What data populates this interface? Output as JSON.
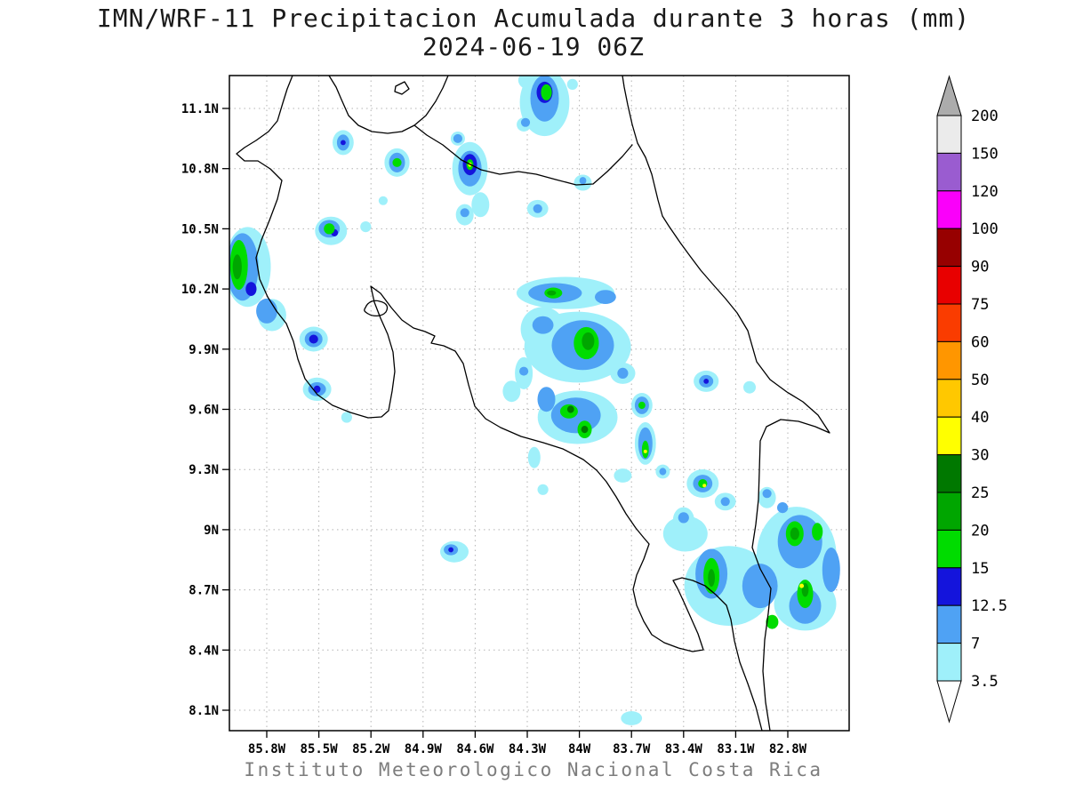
{
  "header": {
    "title": "IMN/WRF-11 Precipitacion Acumulada durante 3 horas (mm)",
    "subtitle": "2024-06-19 06Z"
  },
  "footer": {
    "caption": "Instituto Meteorologico Nacional Costa Rica"
  },
  "chart_data": {
    "type": "heatmap",
    "title": "IMN/WRF-11 Precipitacion Acumulada durante 3 horas (mm)",
    "subtitle": "2024-06-19 06Z",
    "units": "mm",
    "region": "Costa Rica",
    "grid": "dotted",
    "legend_position": "right",
    "lon_ticks": [
      "85.8W",
      "85.5W",
      "85.2W",
      "84.9W",
      "84.6W",
      "84.3W",
      "84W",
      "83.7W",
      "83.4W",
      "83.1W",
      "82.8W"
    ],
    "lat_ticks": [
      "11.1N",
      "10.8N",
      "10.5N",
      "10.2N",
      "9.9N",
      "9.6N",
      "9.3N",
      "9N",
      "8.7N",
      "8.4N",
      "8.1N"
    ],
    "lon_range_west": [
      86.02,
      82.45
    ],
    "lat_range": [
      8.0,
      11.26
    ],
    "colorbar": {
      "boundaries": [
        "200",
        "150",
        "120",
        "100",
        "90",
        "75",
        "60",
        "50",
        "40",
        "30",
        "25",
        "20",
        "15",
        "12.5",
        "7",
        "3.5"
      ],
      "segment_colors": [
        "#EBEBEB",
        "#9A5CD0",
        "#FA00FA",
        "#970000",
        "#E80000",
        "#FA3C00",
        "#FF9600",
        "#FFC800",
        "#FFFF00",
        "#007800",
        "#00A600",
        "#00DC00",
        "#1414DC",
        "#4FA2F4",
        "#9FF0FA"
      ],
      "above_color": "#ACACAC",
      "below_color": "#FFFFFF"
    },
    "precip_cells": [
      [
        84.2,
        11.13,
        0.143,
        0.168,
        3.5
      ],
      [
        84.26,
        11.24,
        0.092,
        0.053,
        3.5
      ],
      [
        84.2,
        11.15,
        0.082,
        0.115,
        7
      ],
      [
        84.2,
        11.18,
        0.046,
        0.053,
        12.5
      ],
      [
        84.19,
        11.18,
        0.031,
        0.04,
        15
      ],
      [
        84.04,
        11.22,
        0.031,
        0.027,
        3.5
      ],
      [
        84.32,
        11.02,
        0.041,
        0.035,
        3.5
      ],
      [
        84.31,
        11.03,
        0.026,
        0.022,
        7
      ],
      [
        85.05,
        10.83,
        0.072,
        0.071,
        3.5
      ],
      [
        85.05,
        10.83,
        0.046,
        0.049,
        7
      ],
      [
        85.05,
        10.83,
        0.026,
        0.022,
        15
      ],
      [
        85.36,
        10.93,
        0.061,
        0.062,
        3.5
      ],
      [
        85.36,
        10.93,
        0.036,
        0.04,
        7
      ],
      [
        85.36,
        10.93,
        0.015,
        0.013,
        12.5
      ],
      [
        84.63,
        10.8,
        0.102,
        0.133,
        3.5
      ],
      [
        84.63,
        10.8,
        0.067,
        0.089,
        7
      ],
      [
        84.63,
        10.82,
        0.041,
        0.053,
        12.5
      ],
      [
        84.63,
        10.82,
        0.02,
        0.027,
        15
      ],
      [
        84.63,
        10.82,
        0.01,
        0.011,
        30
      ],
      [
        84.57,
        10.62,
        0.051,
        0.062,
        3.5
      ],
      [
        84.7,
        10.95,
        0.041,
        0.035,
        3.5
      ],
      [
        84.7,
        10.95,
        0.026,
        0.022,
        7
      ],
      [
        84.24,
        10.6,
        0.061,
        0.044,
        3.5
      ],
      [
        84.24,
        10.6,
        0.026,
        0.022,
        7
      ],
      [
        83.98,
        10.73,
        0.051,
        0.04,
        3.5
      ],
      [
        83.98,
        10.74,
        0.02,
        0.018,
        7
      ],
      [
        84.66,
        10.57,
        0.051,
        0.053,
        3.5
      ],
      [
        84.66,
        10.58,
        0.026,
        0.022,
        7
      ],
      [
        85.91,
        10.31,
        0.133,
        0.199,
        3.5
      ],
      [
        85.94,
        10.31,
        0.092,
        0.168,
        7
      ],
      [
        85.96,
        10.32,
        0.051,
        0.124,
        15
      ],
      [
        85.97,
        10.31,
        0.026,
        0.062,
        20
      ],
      [
        85.89,
        10.2,
        0.031,
        0.035,
        12.5
      ],
      [
        85.8,
        10.09,
        0.061,
        0.062,
        7
      ],
      [
        85.77,
        10.07,
        0.082,
        0.08,
        3.5
      ],
      [
        85.43,
        10.49,
        0.092,
        0.071,
        3.5
      ],
      [
        85.44,
        10.5,
        0.061,
        0.044,
        7
      ],
      [
        85.44,
        10.5,
        0.031,
        0.027,
        15
      ],
      [
        85.41,
        10.48,
        0.02,
        0.018,
        12.5
      ],
      [
        85.23,
        10.51,
        0.031,
        0.027,
        3.5
      ],
      [
        85.13,
        10.64,
        0.026,
        0.022,
        3.5
      ],
      [
        85.53,
        9.95,
        0.082,
        0.062,
        3.5
      ],
      [
        85.53,
        9.95,
        0.051,
        0.04,
        7
      ],
      [
        85.53,
        9.95,
        0.026,
        0.022,
        12.5
      ],
      [
        85.51,
        9.7,
        0.082,
        0.058,
        3.5
      ],
      [
        85.51,
        9.7,
        0.051,
        0.035,
        7
      ],
      [
        85.51,
        9.7,
        0.02,
        0.018,
        12.5
      ],
      [
        85.34,
        9.56,
        0.031,
        0.027,
        3.5
      ],
      [
        84.08,
        10.18,
        0.282,
        0.08,
        3.5
      ],
      [
        84.14,
        10.18,
        0.154,
        0.049,
        7
      ],
      [
        84.15,
        10.18,
        0.051,
        0.027,
        15
      ],
      [
        84.16,
        10.18,
        0.026,
        0.013,
        20
      ],
      [
        83.85,
        10.16,
        0.061,
        0.035,
        7
      ],
      [
        84.01,
        9.91,
        0.307,
        0.177,
        3.5
      ],
      [
        84.21,
        10.0,
        0.128,
        0.111,
        3.5
      ],
      [
        83.98,
        9.92,
        0.179,
        0.124,
        7
      ],
      [
        83.96,
        9.93,
        0.072,
        0.08,
        15
      ],
      [
        83.95,
        9.94,
        0.036,
        0.044,
        20
      ],
      [
        84.21,
        10.02,
        0.061,
        0.044,
        7
      ],
      [
        83.75,
        9.78,
        0.072,
        0.053,
        3.5
      ],
      [
        83.75,
        9.78,
        0.031,
        0.027,
        7
      ],
      [
        84.32,
        9.78,
        0.051,
        0.08,
        3.5
      ],
      [
        84.32,
        9.79,
        0.026,
        0.022,
        7
      ],
      [
        84.39,
        9.69,
        0.051,
        0.053,
        3.5
      ],
      [
        84.01,
        9.56,
        0.23,
        0.133,
        3.5
      ],
      [
        84.02,
        9.57,
        0.143,
        0.089,
        7
      ],
      [
        84.06,
        9.59,
        0.051,
        0.035,
        15
      ],
      [
        84.05,
        9.6,
        0.02,
        0.018,
        25
      ],
      [
        83.97,
        9.5,
        0.041,
        0.044,
        15
      ],
      [
        83.97,
        9.5,
        0.02,
        0.018,
        25
      ],
      [
        84.19,
        9.65,
        0.051,
        0.062,
        7
      ],
      [
        83.64,
        9.62,
        0.061,
        0.062,
        3.5
      ],
      [
        83.64,
        9.62,
        0.041,
        0.044,
        7
      ],
      [
        83.64,
        9.62,
        0.02,
        0.018,
        15
      ],
      [
        83.27,
        9.74,
        0.072,
        0.053,
        3.5
      ],
      [
        83.27,
        9.74,
        0.041,
        0.031,
        7
      ],
      [
        83.27,
        9.74,
        0.015,
        0.013,
        12.5
      ],
      [
        83.62,
        9.43,
        0.061,
        0.106,
        3.5
      ],
      [
        83.62,
        9.43,
        0.041,
        0.08,
        7
      ],
      [
        83.62,
        9.4,
        0.02,
        0.044,
        15
      ],
      [
        83.62,
        9.39,
        0.01,
        0.009,
        30
      ],
      [
        83.52,
        9.29,
        0.041,
        0.035,
        3.5
      ],
      [
        83.52,
        9.29,
        0.02,
        0.018,
        7
      ],
      [
        83.75,
        9.27,
        0.051,
        0.035,
        3.5
      ],
      [
        83.29,
        9.23,
        0.092,
        0.071,
        3.5
      ],
      [
        83.29,
        9.23,
        0.056,
        0.044,
        7
      ],
      [
        83.29,
        9.23,
        0.026,
        0.022,
        15
      ],
      [
        83.28,
        9.22,
        0.01,
        0.009,
        30
      ],
      [
        83.16,
        9.14,
        0.061,
        0.044,
        3.5
      ],
      [
        83.16,
        9.14,
        0.026,
        0.022,
        7
      ],
      [
        82.92,
        9.16,
        0.051,
        0.053,
        3.5
      ],
      [
        82.92,
        9.18,
        0.026,
        0.022,
        7
      ],
      [
        83.02,
        9.71,
        0.036,
        0.031,
        3.5
      ],
      [
        84.21,
        9.2,
        0.031,
        0.027,
        3.5
      ],
      [
        84.26,
        9.36,
        0.036,
        0.053,
        3.5
      ],
      [
        84.72,
        8.89,
        0.082,
        0.053,
        3.5
      ],
      [
        84.74,
        8.9,
        0.041,
        0.027,
        7
      ],
      [
        84.74,
        8.9,
        0.015,
        0.013,
        12.5
      ],
      [
        82.75,
        8.87,
        0.23,
        0.244,
        3.5
      ],
      [
        83.14,
        8.72,
        0.256,
        0.199,
        3.5
      ],
      [
        82.7,
        8.63,
        0.179,
        0.133,
        3.5
      ],
      [
        83.39,
        8.98,
        0.128,
        0.089,
        3.5
      ],
      [
        83.4,
        9.05,
        0.061,
        0.062,
        3.5
      ],
      [
        82.73,
        8.94,
        0.128,
        0.133,
        7
      ],
      [
        82.96,
        8.72,
        0.102,
        0.111,
        7
      ],
      [
        82.7,
        8.62,
        0.092,
        0.089,
        7
      ],
      [
        83.24,
        8.78,
        0.092,
        0.124,
        7
      ],
      [
        83.4,
        9.06,
        0.031,
        0.027,
        7
      ],
      [
        82.83,
        9.11,
        0.031,
        0.027,
        7
      ],
      [
        82.55,
        8.8,
        0.051,
        0.111,
        7
      ],
      [
        83.24,
        8.77,
        0.046,
        0.089,
        15
      ],
      [
        83.24,
        8.76,
        0.02,
        0.044,
        20
      ],
      [
        82.76,
        8.98,
        0.051,
        0.062,
        15
      ],
      [
        82.76,
        8.98,
        0.026,
        0.031,
        20
      ],
      [
        82.63,
        8.99,
        0.031,
        0.044,
        15
      ],
      [
        82.7,
        8.68,
        0.046,
        0.071,
        15
      ],
      [
        82.7,
        8.7,
        0.02,
        0.035,
        20
      ],
      [
        82.72,
        8.72,
        0.013,
        0.011,
        30
      ],
      [
        82.89,
        8.54,
        0.036,
        0.035,
        15
      ],
      [
        83.7,
        8.06,
        0.061,
        0.035,
        3.5
      ]
    ]
  }
}
